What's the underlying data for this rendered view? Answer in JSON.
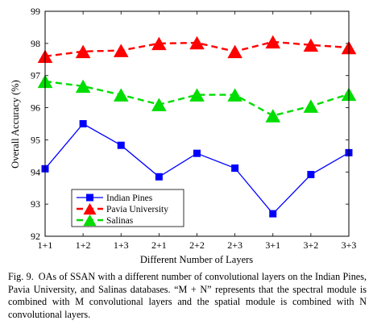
{
  "chart_data": {
    "type": "line",
    "xlabel": "Different Number of Layers",
    "ylabel": "Overall Accuracy (%)",
    "ylim": [
      92,
      99
    ],
    "yticks": [
      92,
      93,
      94,
      95,
      96,
      97,
      98,
      99
    ],
    "categories": [
      "1+1",
      "1+2",
      "1+3",
      "2+1",
      "2+2",
      "2+3",
      "3+1",
      "3+2",
      "3+3"
    ],
    "grid": false,
    "legend_position": "bottom-left",
    "series": [
      {
        "name": "Indian Pines",
        "color": "#0000ff",
        "line_style": "solid",
        "marker": "square",
        "values": [
          94.1,
          95.5,
          94.83,
          93.85,
          94.58,
          94.12,
          92.7,
          93.92,
          94.6
        ]
      },
      {
        "name": "Pavia University",
        "color": "#ff0000",
        "line_style": "dashed",
        "marker": "triangle",
        "values": [
          97.6,
          97.75,
          97.78,
          98.0,
          98.02,
          97.75,
          98.05,
          97.95,
          97.87
        ]
      },
      {
        "name": "Salinas",
        "color": "#00dd00",
        "line_style": "dashed",
        "marker": "triangle",
        "values": [
          96.82,
          96.67,
          96.4,
          96.1,
          96.4,
          96.4,
          95.75,
          96.05,
          96.42
        ]
      }
    ]
  },
  "caption": {
    "label": "Fig. 9.",
    "text": "OAs of SSAN with a different number of convolutional layers on the Indian Pines, Pavia University, and Salinas databases. “M + N” represents that the spectral module is combined with M convolutional layers and the spatial module is combined with N convolutional layers."
  }
}
